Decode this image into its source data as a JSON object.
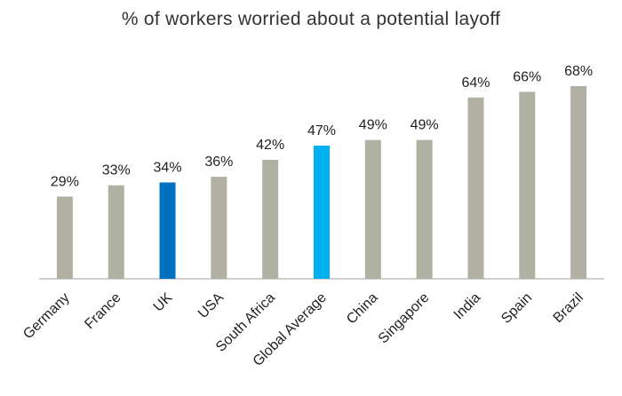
{
  "chart_data": {
    "type": "bar",
    "title": "% of workers worried about a potential layoff",
    "xlabel": "",
    "ylabel": "",
    "ylim": [
      0,
      68
    ],
    "categories": [
      "Germany",
      "France",
      "UK",
      "USA",
      "South Africa",
      "Global Average",
      "China",
      "Singapore",
      "India",
      "Spain",
      "Brazil"
    ],
    "values": [
      29,
      33,
      34,
      36,
      42,
      47,
      49,
      49,
      64,
      66,
      68
    ],
    "value_labels": [
      "29%",
      "33%",
      "34%",
      "36%",
      "42%",
      "47%",
      "49%",
      "49%",
      "64%",
      "66%",
      "68%"
    ],
    "colors": [
      "#b0b1a3",
      "#b0b1a3",
      "#0070c0",
      "#b0b1a3",
      "#b0b1a3",
      "#00b0f0",
      "#b0b1a3",
      "#b0b1a3",
      "#b0b1a3",
      "#b0b1a3",
      "#b0b1a3"
    ],
    "axis_color": "#bfbfbf",
    "grid": false,
    "legend": "none"
  }
}
